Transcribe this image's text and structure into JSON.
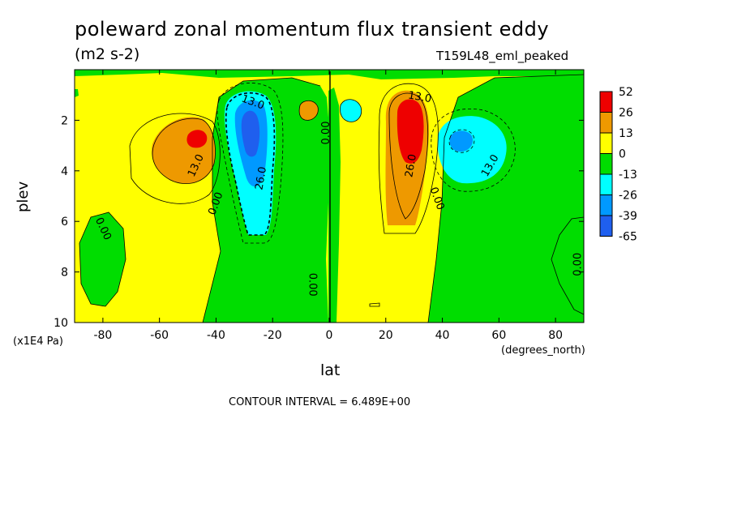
{
  "title": "poleward zonal momentum flux transient eddy",
  "units": "(m2 s-2)",
  "run_id": "T159L48_eml_peaked",
  "contour_interval": "CONTOUR INTERVAL = 6.489E+00",
  "chart_data": {
    "type": "heatmap",
    "xlabel": "lat",
    "x_units": "(degrees_north)",
    "ylabel": "plev",
    "y_units": "(x1E4 Pa)",
    "xlim": [
      -90,
      90
    ],
    "ylim": [
      10,
      0
    ],
    "x_ticks": [
      {
        "v": -80,
        "label": "-80"
      },
      {
        "v": -60,
        "label": "-60"
      },
      {
        "v": -40,
        "label": "-40"
      },
      {
        "v": -20,
        "label": "-20"
      },
      {
        "v": 0,
        "label": "0"
      },
      {
        "v": 20,
        "label": "20"
      },
      {
        "v": 40,
        "label": "40"
      },
      {
        "v": 60,
        "label": "60"
      },
      {
        "v": 80,
        "label": "80"
      }
    ],
    "y_ticks": [
      {
        "v": 2,
        "label": "2"
      },
      {
        "v": 4,
        "label": "4"
      },
      {
        "v": 6,
        "label": "6"
      },
      {
        "v": 8,
        "label": "8"
      },
      {
        "v": 10,
        "label": "10"
      }
    ],
    "colorbar": {
      "labels": [
        "52",
        "26",
        "13",
        "0",
        "-13",
        "-26",
        "-39",
        "-65"
      ],
      "colors": [
        "#ee0000",
        "#ee9900",
        "#ffff00",
        "#00dd00",
        "#00ffff",
        "#0099ff",
        "#1f5fee"
      ]
    },
    "contour_labels": [
      {
        "text": "13.0",
        "lat": -47,
        "plev": 3.8,
        "rot": -65
      },
      {
        "text": "13.0",
        "lat": -27,
        "plev": 1.3,
        "rot": 20
      },
      {
        "text": "26.0",
        "lat": -24,
        "plev": 4.3,
        "rot": -80
      },
      {
        "text": "0.00",
        "lat": -40,
        "plev": 5.3,
        "rot": -70
      },
      {
        "text": "0.00",
        "lat": -80,
        "plev": 6.3,
        "rot": 65
      },
      {
        "text": "0.00",
        "lat": -1,
        "plev": 2.5,
        "rot": -90
      },
      {
        "text": "0.00",
        "lat": -6,
        "plev": 8.5,
        "rot": 90
      },
      {
        "text": "13.0",
        "lat": 32,
        "plev": 1.1,
        "rot": 10
      },
      {
        "text": "26.0",
        "lat": 29,
        "plev": 3.8,
        "rot": -80
      },
      {
        "text": "0.00",
        "lat": 38,
        "plev": 5.1,
        "rot": 70
      },
      {
        "text": "13.0",
        "lat": 57,
        "plev": 3.8,
        "rot": -60
      },
      {
        "text": "0.00",
        "lat": 88,
        "plev": 7.7,
        "rot": -90
      }
    ],
    "features": [
      {
        "sign": "+",
        "lat": -47,
        "plev": 2.9,
        "peak": 26
      },
      {
        "sign": "-",
        "lat": -28,
        "plev": 2.5,
        "peak": -39
      },
      {
        "sign": "+",
        "lat": 28,
        "plev": 2.3,
        "peak": 52
      },
      {
        "sign": "-",
        "lat": 47,
        "plev": 2.9,
        "peak": -26
      }
    ]
  }
}
